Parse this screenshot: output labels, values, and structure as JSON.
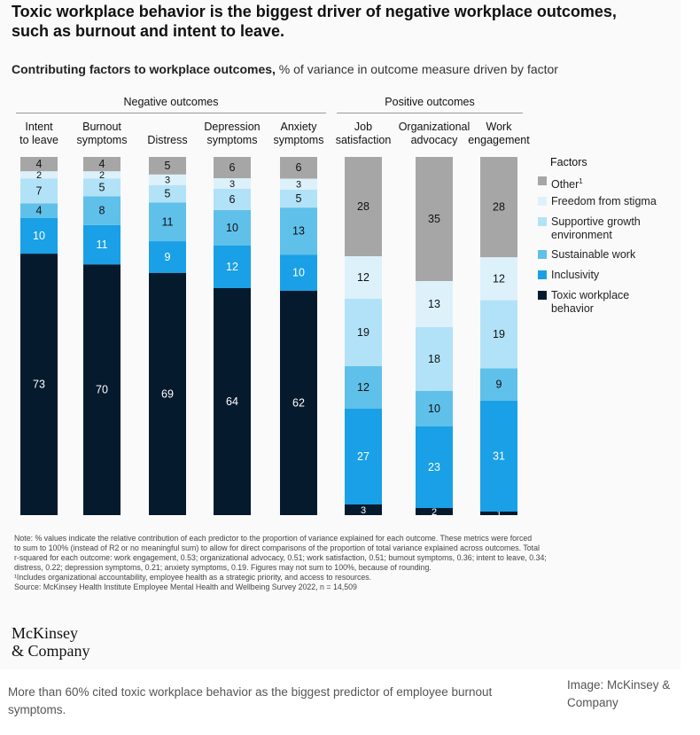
{
  "title": "Toxic workplace behavior is the biggest driver of negative workplace outcomes, such as burnout and intent to leave.",
  "subtitle_bold": "Contributing factors to workplace outcomes,",
  "subtitle_rest": " % of variance in outcome measure driven by factor",
  "group_negative": "Negative outcomes",
  "group_positive": "Positive outcomes",
  "legend_title": "Factors",
  "colors": {
    "Other": "#a6a6a6",
    "Freedom from stigma": "#ddf1fb",
    "Supportive growth environment": "#b2e2f7",
    "Sustainable work": "#5fc0ea",
    "Inclusivity": "#19a0e6",
    "Toxic workplace behavior": "#061a2e"
  },
  "legend": [
    {
      "label": "Other",
      "sup": "1",
      "color": "#a6a6a6"
    },
    {
      "label": "Freedom from stigma",
      "sup": "",
      "color": "#ddf1fb"
    },
    {
      "label": "Supportive growth environment",
      "sup": "",
      "color": "#b2e2f7"
    },
    {
      "label": "Sustainable work",
      "sup": "",
      "color": "#5fc0ea"
    },
    {
      "label": "Inclusivity",
      "sup": "",
      "color": "#19a0e6"
    },
    {
      "label": "Toxic workplace behavior",
      "sup": "",
      "color": "#061a2e"
    }
  ],
  "chart_data": {
    "type": "bar",
    "stacked": true,
    "categories": [
      "Intent to leave",
      "Burnout symptoms",
      "Distress",
      "Depression symptoms",
      "Anxiety symptoms",
      "Job satisfaction",
      "Organizational advocacy",
      "Work engagement"
    ],
    "category_lines": [
      [
        "Intent",
        "to leave"
      ],
      [
        "Burnout",
        "symptoms"
      ],
      [
        "Distress"
      ],
      [
        "Depression",
        "symptoms"
      ],
      [
        "Anxiety",
        "symptoms"
      ],
      [
        "Job",
        "satisfaction"
      ],
      [
        "Organizational",
        "advocacy"
      ],
      [
        "Work",
        "engagement"
      ]
    ],
    "groups": [
      {
        "name": "Negative outcomes",
        "categories": [
          "Intent to leave",
          "Burnout symptoms",
          "Distress",
          "Depression symptoms",
          "Anxiety symptoms"
        ]
      },
      {
        "name": "Positive outcomes",
        "categories": [
          "Job satisfaction",
          "Organizational advocacy",
          "Work engagement"
        ]
      }
    ],
    "series": [
      {
        "name": "Toxic workplace behavior",
        "values": [
          73,
          70,
          69,
          64,
          62,
          3,
          2,
          1
        ]
      },
      {
        "name": "Inclusivity",
        "values": [
          10,
          11,
          9,
          12,
          10,
          27,
          23,
          31
        ]
      },
      {
        "name": "Sustainable work",
        "values": [
          4,
          8,
          11,
          10,
          13,
          12,
          10,
          9
        ]
      },
      {
        "name": "Supportive growth environment",
        "values": [
          7,
          5,
          5,
          6,
          5,
          19,
          18,
          19
        ]
      },
      {
        "name": "Freedom from stigma",
        "values": [
          2,
          2,
          3,
          3,
          3,
          12,
          13,
          12
        ]
      },
      {
        "name": "Other",
        "values": [
          4,
          4,
          5,
          6,
          6,
          28,
          35,
          28
        ]
      }
    ],
    "ylabel": "% of variance in outcome measure driven by factor"
  },
  "notes": [
    "Note: % values indicate the relative contribution of each predictor to the proportion of variance explained for each outcome. These metrics were forced",
    "to sum to 100% (instead of R2 or no meaningful sum) to allow for direct comparisons of the proportion of total variance explained across outcomes. Total",
    "r-squared for each outcome: work engagement, 0.53; organizational advocacy, 0.51; work satisfaction, 0.51; burnout symptoms, 0.36; intent to leave, 0.34;",
    "distress, 0.22; depression symptoms, 0.21; anxiety symptoms, 0.19. Figures may not sum to 100%, because of rounding.",
    "¹Includes organizational accountability, employee health as a strategic priority, and access to resources.",
    "Source: McKinsey Health Institute Employee Mental Health and Wellbeing Survey 2022, n = 14,509"
  ],
  "brand_line1": "McKinsey",
  "brand_line2": "& Company",
  "caption": "More than 60% cited toxic workplace behavior as the biggest predictor of employee burnout symptoms.",
  "credit": "Image: McKinsey & Company"
}
